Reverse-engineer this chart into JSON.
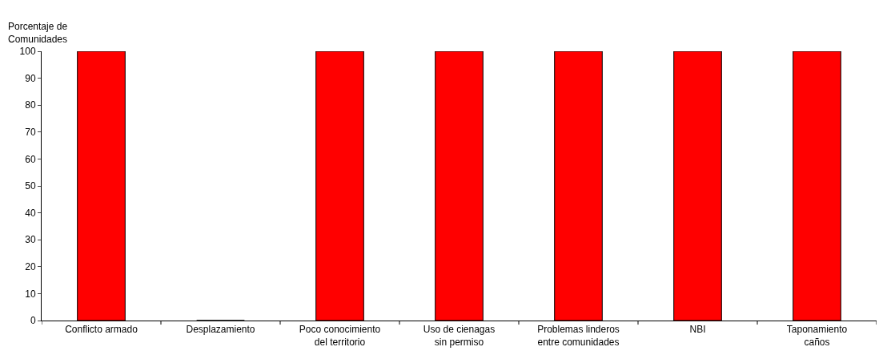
{
  "chart_data": {
    "type": "bar",
    "ylabel": "Porcentaje de\nComunidades",
    "categories": [
      "Conflicto armado",
      "Desplazamiento",
      "Poco conocimiento\ndel territorio",
      "Uso de cienagas\nsin permiso",
      "Problemas linderos\nentre comunidades",
      "NBI",
      "Taponamiento\ncaños"
    ],
    "values": [
      100,
      0,
      100,
      100,
      100,
      100,
      100
    ],
    "color": "#ff0000",
    "ylim": [
      0,
      100
    ],
    "yticks": [
      0,
      10,
      20,
      30,
      40,
      50,
      60,
      70,
      80,
      90,
      100
    ]
  }
}
